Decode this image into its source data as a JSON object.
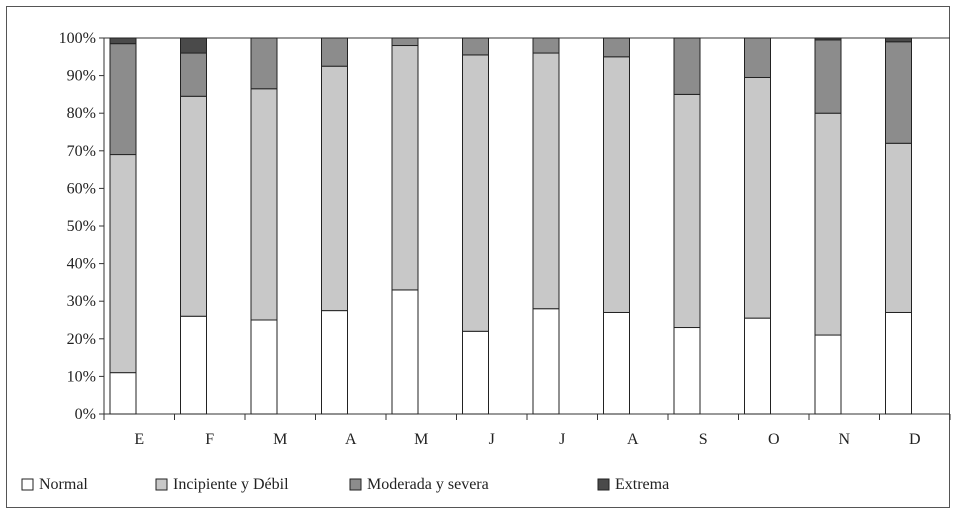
{
  "chart_data": {
    "type": "bar",
    "stacked": true,
    "normalized": true,
    "categories": [
      "E",
      "F",
      "M",
      "A",
      "M",
      "J",
      "J",
      "A",
      "S",
      "O",
      "N",
      "D"
    ],
    "series": [
      {
        "name": "Normal",
        "color": "#ffffff",
        "values": [
          11,
          26,
          25,
          27.5,
          33,
          22,
          28,
          27,
          23,
          25.5,
          21,
          27
        ]
      },
      {
        "name": "Incipiente y Débil",
        "color": "#c8c8c8",
        "values": [
          58,
          58.5,
          61.5,
          65,
          65,
          73.5,
          68,
          68,
          62,
          64,
          59,
          45
        ]
      },
      {
        "name": "Moderada y severa",
        "color": "#8c8c8c",
        "values": [
          29.5,
          11.5,
          13.5,
          7.5,
          2,
          4.5,
          4,
          5,
          15,
          10.5,
          19.5,
          27
        ]
      },
      {
        "name": "Extrema",
        "color": "#4a4a4a",
        "values": [
          1.5,
          4,
          0,
          0,
          0,
          0,
          0,
          0,
          0,
          0,
          0.5,
          1
        ]
      }
    ],
    "ylim": [
      0,
      100
    ],
    "yticks": [
      "0%",
      "10%",
      "20%",
      "30%",
      "40%",
      "50%",
      "60%",
      "70%",
      "80%",
      "90%",
      "100%"
    ],
    "grid": false,
    "legend_position": "bottom",
    "title": "",
    "xlabel": "",
    "ylabel": ""
  }
}
